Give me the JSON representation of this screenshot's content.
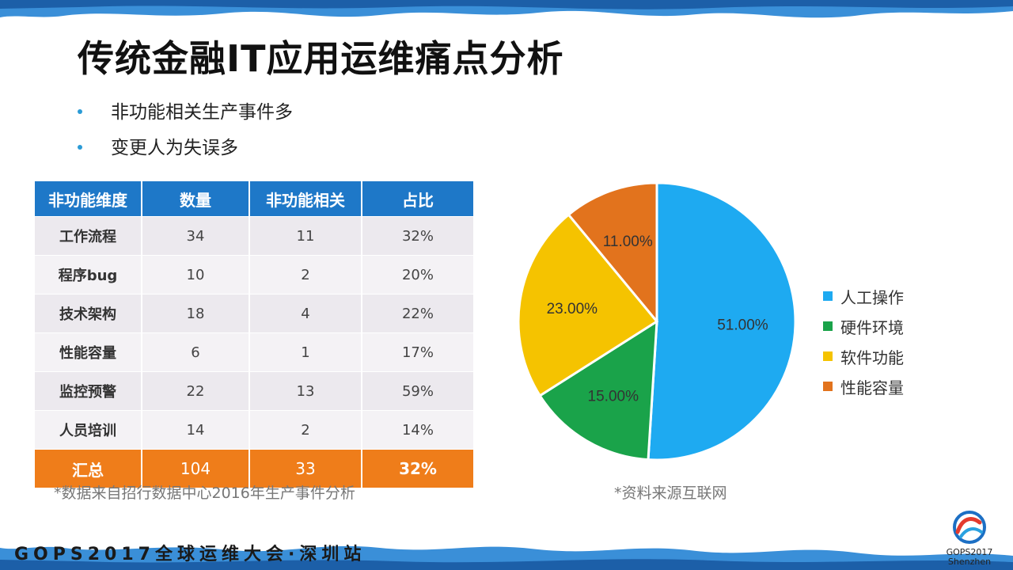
{
  "title": "传统金融IT应用运维痛点分析",
  "bullets": [
    "非功能相关生产事件多",
    "变更人为失误多"
  ],
  "table": {
    "headers": [
      "非功能维度",
      "数量",
      "非功能相关",
      "占比"
    ],
    "rows": [
      [
        "工作流程",
        "34",
        "11",
        "32%"
      ],
      [
        "程序bug",
        "10",
        "2",
        "20%"
      ],
      [
        "技术架构",
        "18",
        "4",
        "22%"
      ],
      [
        "性能容量",
        "6",
        "1",
        "17%"
      ],
      [
        "监控预警",
        "22",
        "13",
        "59%"
      ],
      [
        "人员培训",
        "14",
        "2",
        "14%"
      ]
    ],
    "total": [
      "汇总",
      "104",
      "33",
      "32%"
    ],
    "note": "*数据来自招行数据中心2016年生产事件分析"
  },
  "chart_data": {
    "type": "pie",
    "categories": [
      "人工操作",
      "硬件环境",
      "软件功能",
      "性能容量"
    ],
    "values": [
      51,
      15,
      23,
      11
    ],
    "labels": [
      "51.00%",
      "15.00%",
      "23.00%",
      "11.00%"
    ],
    "colors": [
      "#1eaaf1",
      "#1aa34a",
      "#f5c300",
      "#e2731d"
    ],
    "legend_position": "right"
  },
  "chart_note": "*资料来源互联网",
  "footer": "GOPS2017全球运维大会·深圳站",
  "logo": {
    "line1": "GOPS2017",
    "line2": "Shenzhen"
  }
}
